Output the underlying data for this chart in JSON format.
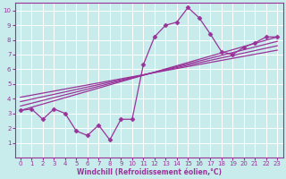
{
  "title": "",
  "xlabel": "Windchill (Refroidissement éolien,°C)",
  "ylabel": "",
  "bg_color": "#c8ecec",
  "line_color": "#993399",
  "grid_color": "#ffffff",
  "xlim": [
    -0.5,
    23.5
  ],
  "ylim": [
    0,
    10.5
  ],
  "xticks": [
    0,
    1,
    2,
    3,
    4,
    5,
    6,
    7,
    8,
    9,
    10,
    11,
    12,
    13,
    14,
    15,
    16,
    17,
    18,
    19,
    20,
    21,
    22,
    23
  ],
  "yticks": [
    1,
    2,
    3,
    4,
    5,
    6,
    7,
    8,
    9,
    10
  ],
  "main_x": [
    0,
    1,
    2,
    3,
    4,
    5,
    6,
    7,
    8,
    9,
    10,
    11,
    12,
    13,
    14,
    15,
    16,
    17,
    18,
    19,
    20,
    21,
    22,
    23
  ],
  "main_y": [
    3.2,
    3.3,
    2.6,
    3.3,
    3.0,
    1.8,
    1.5,
    2.2,
    1.2,
    2.6,
    2.6,
    6.3,
    8.2,
    9.0,
    9.2,
    10.2,
    9.5,
    8.4,
    7.2,
    7.0,
    7.5,
    7.8,
    8.2,
    8.2
  ],
  "straight_lines": [
    {
      "x": [
        0,
        23
      ],
      "y": [
        3.2,
        8.2
      ]
    },
    {
      "x": [
        0,
        23
      ],
      "y": [
        3.5,
        7.9
      ]
    },
    {
      "x": [
        0,
        23
      ],
      "y": [
        3.8,
        7.6
      ]
    },
    {
      "x": [
        0,
        23
      ],
      "y": [
        4.1,
        7.3
      ]
    }
  ],
  "marker": "D",
  "markersize": 2.5,
  "linewidth": 0.9,
  "tick_fontsize": 5,
  "xlabel_fontsize": 5.5
}
